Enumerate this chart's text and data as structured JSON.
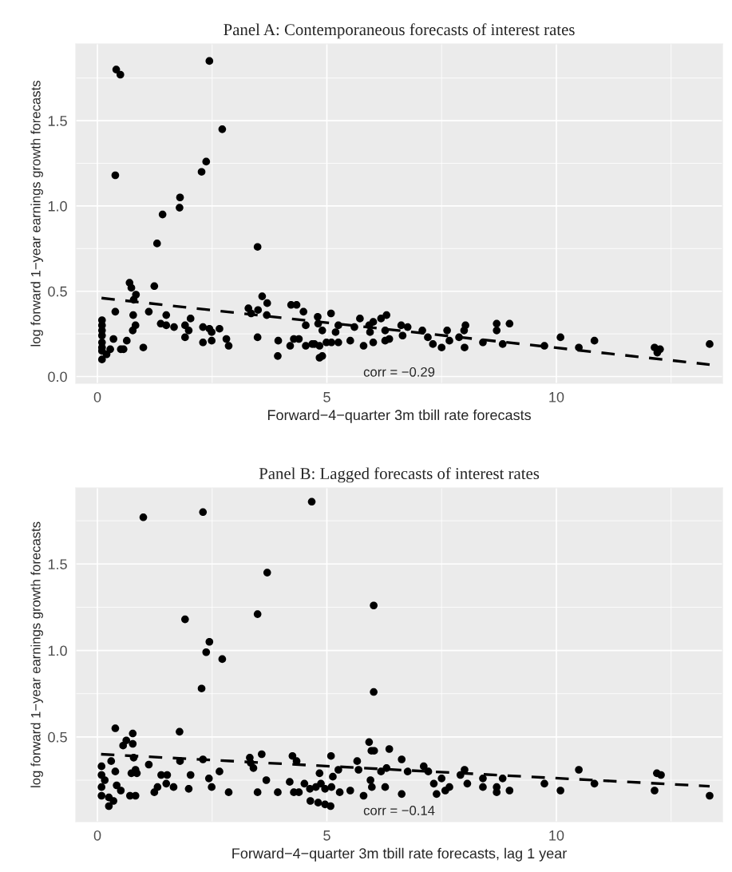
{
  "chart_data": [
    {
      "type": "scatter",
      "title": "Panel A: Contemporaneous forecasts of interest rates",
      "xlabel": "Forward−4−quarter 3m tbill rate forecasts",
      "ylabel": "log forward 1−year earnings growth forecasts",
      "series": [
        {
          "type": "scatter",
          "color": "#000000",
          "marker": "circle",
          "x": [
            0.41,
            0.5,
            2.44,
            2.72,
            0.39,
            2.37,
            2.27,
            1.8,
            1.79,
            1.42,
            1.3,
            3.49,
            0.7,
            0.74,
            1.24,
            0.84,
            0.79,
            3.59,
            3.7,
            0.39,
            0.78,
            1.12,
            1.5,
            1.38,
            1.5,
            1.67,
            2.03,
            1.91,
            1.99,
            1.91,
            2.3,
            2.44,
            2.49,
            2.66,
            2.3,
            2.49,
            2.81,
            2.86,
            3.29,
            3.35,
            3.5,
            3.69,
            3.49,
            3.94,
            3.93,
            0.1,
            0.1,
            0.1,
            0.1,
            0.1,
            0.1,
            0.1,
            0.1,
            0.2,
            0.28,
            0.35,
            0.51,
            0.57,
            0.64,
            0.77,
            0.83,
            1.0,
            4.22,
            4.34,
            4.49,
            4.54,
            4.2,
            4.28,
            4.39,
            4.54,
            4.68,
            4.8,
            5.09,
            4.81,
            4.9,
            4.73,
            4.84,
            4.99,
            5.1,
            5.25,
            4.84,
            4.9,
            5.25,
            5.19,
            5.51,
            5.8,
            6.01,
            5.72,
            5.6,
            5.92,
            6.01,
            6.18,
            6.3,
            5.94,
            6.27,
            6.27,
            6.36,
            6.62,
            6.65,
            6.76,
            7.08,
            7.2,
            7.31,
            7.5,
            7.62,
            7.67,
            7.88,
            8.0,
            8.02,
            7.99,
            8.4,
            8.7,
            8.7,
            8.98,
            8.83,
            9.74,
            10.09,
            10.49,
            10.83,
            12.14,
            12.26,
            12.2,
            13.34
          ],
          "values": [
            1.8,
            1.77,
            1.85,
            1.45,
            1.18,
            1.26,
            1.2,
            1.05,
            0.99,
            0.95,
            0.78,
            0.76,
            0.55,
            0.52,
            0.53,
            0.48,
            0.45,
            0.47,
            0.43,
            0.38,
            0.36,
            0.38,
            0.36,
            0.31,
            0.3,
            0.29,
            0.34,
            0.3,
            0.27,
            0.23,
            0.29,
            0.28,
            0.26,
            0.28,
            0.2,
            0.21,
            0.22,
            0.18,
            0.4,
            0.37,
            0.39,
            0.36,
            0.23,
            0.21,
            0.12,
            0.33,
            0.3,
            0.27,
            0.24,
            0.2,
            0.17,
            0.15,
            0.1,
            0.13,
            0.16,
            0.22,
            0.16,
            0.16,
            0.21,
            0.27,
            0.3,
            0.17,
            0.42,
            0.42,
            0.38,
            0.3,
            0.18,
            0.22,
            0.22,
            0.18,
            0.19,
            0.35,
            0.37,
            0.31,
            0.27,
            0.19,
            0.18,
            0.2,
            0.2,
            0.2,
            0.11,
            0.12,
            0.3,
            0.26,
            0.21,
            0.18,
            0.2,
            0.34,
            0.29,
            0.3,
            0.32,
            0.34,
            0.36,
            0.26,
            0.27,
            0.21,
            0.22,
            0.3,
            0.24,
            0.29,
            0.27,
            0.23,
            0.19,
            0.17,
            0.27,
            0.21,
            0.23,
            0.17,
            0.3,
            0.27,
            0.2,
            0.31,
            0.27,
            0.31,
            0.19,
            0.18,
            0.23,
            0.17,
            0.21,
            0.17,
            0.16,
            0.14,
            0.19
          ]
        },
        {
          "type": "line",
          "color": "#000000",
          "line_style": "dashed",
          "marker": "none",
          "x": [
            0.09,
            13.34
          ],
          "values": [
            0.46,
            0.07
          ]
        }
      ],
      "xlim": [
        -0.47,
        13.62
      ],
      "ylim": [
        -0.04,
        1.95
      ],
      "xticks": [
        0,
        5,
        10
      ],
      "yticks": [
        {
          "value": 0,
          "label": "0.0"
        },
        {
          "value": 0.5,
          "label": "0.5"
        },
        {
          "value": 1,
          "label": "1.0"
        },
        {
          "value": 1.5,
          "label": "1.5"
        }
      ],
      "grid": true,
      "annotations": [
        "corr = −0.29"
      ]
    },
    {
      "type": "scatter",
      "title": "Panel B: Lagged forecasts of interest rates",
      "xlabel": "Forward−4−quarter 3m tbill rate forecasts, lag 1 year",
      "ylabel": "log forward 1−year earnings growth forecasts",
      "series": [
        {
          "type": "scatter",
          "color": "#000000",
          "marker": "circle",
          "x": [
            1.0,
            2.3,
            4.67,
            3.7,
            1.91,
            3.49,
            2.44,
            2.37,
            2.72,
            2.27,
            6.02,
            6.02,
            0.39,
            1.79,
            0.77,
            0.63,
            0.56,
            0.77,
            0.3,
            0.79,
            1.12,
            1.8,
            2.3,
            0.39,
            0.74,
            0.83,
            0.86,
            0.09,
            0.09,
            0.16,
            0.09,
            0.09,
            0.25,
            0.35,
            0.25,
            0.42,
            0.51,
            0.71,
            0.83,
            1.24,
            1.31,
            1.39,
            1.52,
            1.5,
            1.66,
            2.03,
            1.99,
            2.43,
            2.49,
            2.66,
            2.86,
            3.32,
            3.34,
            3.4,
            3.58,
            3.49,
            3.68,
            3.93,
            4.19,
            4.25,
            4.34,
            4.28,
            4.39,
            4.51,
            4.63,
            4.64,
            5.09,
            4.84,
            5.25,
            5.13,
            4.76,
            4.87,
            4.96,
            5.1,
            5.28,
            5.51,
            4.81,
            4.96,
            5.08,
            5.66,
            5.69,
            5.92,
            5.97,
            6.03,
            5.95,
            5.8,
            5.98,
            6.18,
            6.3,
            6.36,
            6.27,
            6.63,
            6.76,
            6.63,
            7.11,
            7.21,
            7.33,
            7.39,
            7.58,
            7.67,
            7.5,
            7.91,
            8.0,
            8.06,
            8.4,
            8.4,
            8.7,
            8.7,
            8.83,
            8.98,
            9.74,
            10.09,
            10.49,
            10.83,
            12.19,
            12.28,
            12.14,
            13.34
          ],
          "values": [
            1.77,
            1.8,
            1.86,
            1.45,
            1.18,
            1.21,
            1.05,
            0.99,
            0.95,
            0.78,
            1.26,
            0.76,
            0.55,
            0.53,
            0.52,
            0.48,
            0.45,
            0.46,
            0.36,
            0.38,
            0.34,
            0.36,
            0.37,
            0.3,
            0.29,
            0.31,
            0.29,
            0.33,
            0.28,
            0.25,
            0.21,
            0.16,
            0.15,
            0.13,
            0.1,
            0.22,
            0.19,
            0.16,
            0.16,
            0.18,
            0.21,
            0.28,
            0.28,
            0.23,
            0.21,
            0.28,
            0.2,
            0.26,
            0.21,
            0.3,
            0.18,
            0.38,
            0.35,
            0.32,
            0.4,
            0.18,
            0.25,
            0.18,
            0.24,
            0.39,
            0.36,
            0.18,
            0.18,
            0.23,
            0.2,
            0.13,
            0.39,
            0.29,
            0.31,
            0.27,
            0.21,
            0.23,
            0.2,
            0.21,
            0.18,
            0.19,
            0.12,
            0.11,
            0.1,
            0.36,
            0.31,
            0.47,
            0.42,
            0.42,
            0.25,
            0.16,
            0.21,
            0.3,
            0.32,
            0.43,
            0.21,
            0.37,
            0.3,
            0.17,
            0.33,
            0.3,
            0.23,
            0.17,
            0.19,
            0.21,
            0.26,
            0.28,
            0.31,
            0.23,
            0.26,
            0.21,
            0.21,
            0.18,
            0.26,
            0.19,
            0.23,
            0.19,
            0.31,
            0.23,
            0.29,
            0.28,
            0.19,
            0.16
          ]
        },
        {
          "type": "line",
          "color": "#000000",
          "line_style": "dashed",
          "marker": "none",
          "x": [
            0.08,
            13.34
          ],
          "values": [
            0.4,
            0.215
          ]
        }
      ],
      "xlim": [
        -0.47,
        13.62
      ],
      "ylim": [
        0.01,
        1.94
      ],
      "xticks": [
        0,
        5,
        10
      ],
      "yticks": [
        {
          "value": 0.5,
          "label": "0.5"
        },
        {
          "value": 1,
          "label": "1.0"
        },
        {
          "value": 1.5,
          "label": "1.5"
        }
      ],
      "grid": true,
      "annotations": [
        "corr = −0.14"
      ]
    }
  ]
}
